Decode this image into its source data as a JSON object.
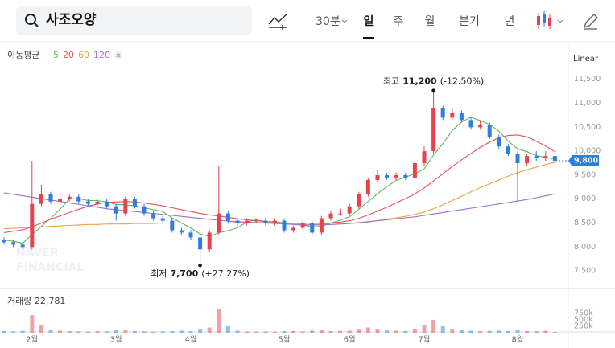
{
  "toolbar": {
    "search": "사조오양",
    "interval": "30분",
    "periods": [
      "일",
      "주",
      "월",
      "분기",
      "년"
    ]
  },
  "chart_data": {
    "type": "candlestick",
    "scale": "Linear",
    "watermark": [
      "NAVER",
      "FINANCIAL"
    ],
    "up_color": "#e8424f",
    "down_color": "#2f7de1",
    "grid": false,
    "categories": [
      null,
      null,
      null,
      "2월",
      null,
      null,
      null,
      null,
      null,
      null,
      null,
      null,
      "3월",
      null,
      null,
      null,
      null,
      null,
      null,
      null,
      "4월",
      null,
      null,
      null,
      null,
      null,
      null,
      null,
      null,
      null,
      "5월",
      null,
      null,
      null,
      null,
      null,
      null,
      "6월",
      null,
      null,
      null,
      null,
      null,
      null,
      null,
      "7월",
      null,
      null,
      null,
      null,
      null,
      null,
      null,
      null,
      null,
      "8월",
      null,
      null,
      null,
      null
    ],
    "open": [
      8150,
      8100,
      8050,
      8000,
      8900,
      9100,
      8950,
      9000,
      9050,
      8950,
      8900,
      8950,
      8850,
      8700,
      9000,
      8850,
      8700,
      8600,
      8550,
      8350,
      8300,
      8200,
      7950,
      8300,
      8700,
      8550,
      8500,
      8550,
      8550,
      8500,
      8550,
      8350,
      8400,
      8500,
      8300,
      8600,
      8700,
      8700,
      8850,
      9100,
      9400,
      9500,
      9450,
      9500,
      9450,
      9750,
      10000,
      10900,
      10700,
      10800,
      10650,
      10500,
      10550,
      10300,
      10100,
      9950,
      9750,
      9900,
      9850,
      9900
    ],
    "high": [
      8200,
      8150,
      8100,
      9800,
      9300,
      9150,
      9100,
      9100,
      9100,
      9000,
      9000,
      9000,
      8900,
      9050,
      9050,
      8900,
      8750,
      8650,
      8600,
      8400,
      8350,
      8250,
      8350,
      9700,
      8750,
      8600,
      8600,
      8600,
      8600,
      8600,
      8600,
      8450,
      8550,
      8550,
      8650,
      8750,
      8800,
      8900,
      9150,
      9450,
      9600,
      9550,
      9550,
      9550,
      9800,
      10100,
      11200,
      10950,
      10900,
      10850,
      10700,
      10650,
      10600,
      10350,
      10150,
      10000,
      9950,
      10000,
      10000,
      9950
    ],
    "low": [
      8050,
      8000,
      7950,
      7950,
      8850,
      8900,
      8900,
      8950,
      8900,
      8850,
      8850,
      8800,
      8550,
      8650,
      8800,
      8650,
      8550,
      8500,
      8300,
      8250,
      8150,
      7700,
      7900,
      8250,
      8500,
      8450,
      8450,
      8500,
      8450,
      8450,
      8300,
      8300,
      8350,
      8250,
      8250,
      8550,
      8650,
      8650,
      8800,
      9050,
      9350,
      9400,
      9400,
      9400,
      9400,
      9700,
      9950,
      10650,
      10650,
      10600,
      10450,
      10450,
      10250,
      10050,
      9900,
      8950,
      9700,
      9800,
      9800,
      9750
    ],
    "close": [
      8100,
      8050,
      8000,
      8900,
      9100,
      8950,
      9000,
      9050,
      8950,
      8900,
      8950,
      8850,
      8700,
      9000,
      8850,
      8700,
      8600,
      8550,
      8350,
      8300,
      8200,
      7950,
      8300,
      8700,
      8550,
      8500,
      8550,
      8550,
      8500,
      8550,
      8350,
      8400,
      8500,
      8300,
      8600,
      8700,
      8700,
      8850,
      9100,
      9400,
      9500,
      9450,
      9500,
      9450,
      9750,
      10000,
      10900,
      10700,
      10800,
      10650,
      10500,
      10550,
      10300,
      10100,
      9950,
      9750,
      9900,
      9850,
      9900,
      9800
    ],
    "ylim": [
      7150,
      12150
    ],
    "yticks": [
      {
        "value": 7500,
        "label": "7,500"
      },
      {
        "value": 8000,
        "label": "8,000"
      },
      {
        "value": 8500,
        "label": "8,500"
      },
      {
        "value": 9000,
        "label": "9,000"
      },
      {
        "value": 9500,
        "label": "9,500"
      },
      {
        "value": 10000,
        "label": "10,000"
      },
      {
        "value": 10500,
        "label": "10,500"
      },
      {
        "value": 11000,
        "label": "11,000"
      },
      {
        "value": 11500,
        "label": "11,500"
      }
    ],
    "current_price": {
      "value": 9800,
      "label": "9,800"
    },
    "annotations": [
      {
        "text": "최고",
        "value": 11200,
        "value_label": "11,200",
        "change": "(-12.50%)"
      },
      {
        "text": "최저",
        "value": 7700,
        "value_label": "7,700",
        "change": "(+27.27%)"
      }
    ],
    "moving_averages": {
      "label": "이동평균",
      "series": [
        {
          "name": "5",
          "color": "#5cb85c",
          "values": [
            8150,
            8120,
            8080,
            8260,
            8430,
            8600,
            8790,
            9000,
            9010,
            8970,
            8970,
            8940,
            8890,
            8880,
            8860,
            8820,
            8780,
            8740,
            8610,
            8500,
            8400,
            8270,
            8220,
            8300,
            8340,
            8400,
            8520,
            8570,
            8530,
            8530,
            8500,
            8470,
            8460,
            8420,
            8430,
            8500,
            8560,
            8630,
            8790,
            8950,
            9110,
            9260,
            9390,
            9460,
            9530,
            9630,
            9920,
            10160,
            10430,
            10610,
            10710,
            10640,
            10560,
            10420,
            10210,
            10050,
            9990,
            9910,
            9870,
            9840
          ]
        },
        {
          "name": "20",
          "color": "#e8525a",
          "values": [
            8300,
            8330,
            8360,
            8420,
            8500,
            8580,
            8650,
            8720,
            8790,
            8850,
            8900,
            8930,
            8940,
            8950,
            8940,
            8920,
            8890,
            8860,
            8820,
            8780,
            8740,
            8700,
            8670,
            8650,
            8620,
            8590,
            8570,
            8550,
            8530,
            8520,
            8500,
            8490,
            8480,
            8470,
            8480,
            8500,
            8520,
            8550,
            8600,
            8670,
            8750,
            8830,
            8920,
            9010,
            9110,
            9230,
            9380,
            9530,
            9680,
            9820,
            9950,
            10080,
            10190,
            10280,
            10330,
            10340,
            10300,
            10210,
            10110,
            9990
          ]
        },
        {
          "name": "60",
          "color": "#f0a040",
          "values": [
            8380,
            8390,
            8400,
            8410,
            8420,
            8430,
            8440,
            8450,
            8460,
            8470,
            8470,
            8480,
            8480,
            8480,
            8490,
            8490,
            8490,
            8500,
            8500,
            8500,
            8500,
            8500,
            8500,
            8500,
            8500,
            8510,
            8510,
            8510,
            8510,
            8510,
            8500,
            8490,
            8480,
            8470,
            8470,
            8470,
            8480,
            8490,
            8500,
            8520,
            8550,
            8580,
            8610,
            8640,
            8680,
            8730,
            8800,
            8880,
            8970,
            9060,
            9150,
            9240,
            9320,
            9400,
            9480,
            9550,
            9610,
            9670,
            9720,
            9770
          ]
        },
        {
          "name": "120",
          "color": "#a070d0",
          "values": [
            9130,
            9100,
            9070,
            9040,
            9010,
            8980,
            8950,
            8920,
            8890,
            8860,
            8830,
            8800,
            8780,
            8760,
            8740,
            8720,
            8700,
            8680,
            8660,
            8640,
            8620,
            8600,
            8580,
            8560,
            8540,
            8530,
            8520,
            8510,
            8500,
            8490,
            8480,
            8470,
            8460,
            8460,
            8460,
            8470,
            8480,
            8490,
            8510,
            8530,
            8550,
            8570,
            8590,
            8610,
            8630,
            8660,
            8690,
            8720,
            8750,
            8780,
            8810,
            8840,
            8870,
            8900,
            8930,
            8960,
            8990,
            9030,
            9070,
            9110
          ]
        }
      ]
    },
    "volume": {
      "name": "거래량",
      "last_label": "22,781",
      "values": [
        60000,
        50000,
        70000,
        680000,
        300000,
        120000,
        80000,
        60000,
        50000,
        40000,
        60000,
        50000,
        120000,
        90000,
        60000,
        50000,
        40000,
        50000,
        60000,
        80000,
        60000,
        150000,
        200000,
        900000,
        250000,
        80000,
        50000,
        40000,
        50000,
        40000,
        60000,
        70000,
        50000,
        80000,
        90000,
        60000,
        70000,
        80000,
        150000,
        200000,
        150000,
        100000,
        80000,
        70000,
        160000,
        300000,
        500000,
        250000,
        150000,
        100000,
        80000,
        60000,
        70000,
        80000,
        60000,
        120000,
        70000,
        60000,
        80000,
        22781
      ],
      "ylim": [
        0,
        1400000
      ],
      "yticks": [
        {
          "value": 250000,
          "label": "250k"
        },
        {
          "value": 500000,
          "label": "500k"
        },
        {
          "value": 750000,
          "label": "750k"
        }
      ]
    }
  }
}
